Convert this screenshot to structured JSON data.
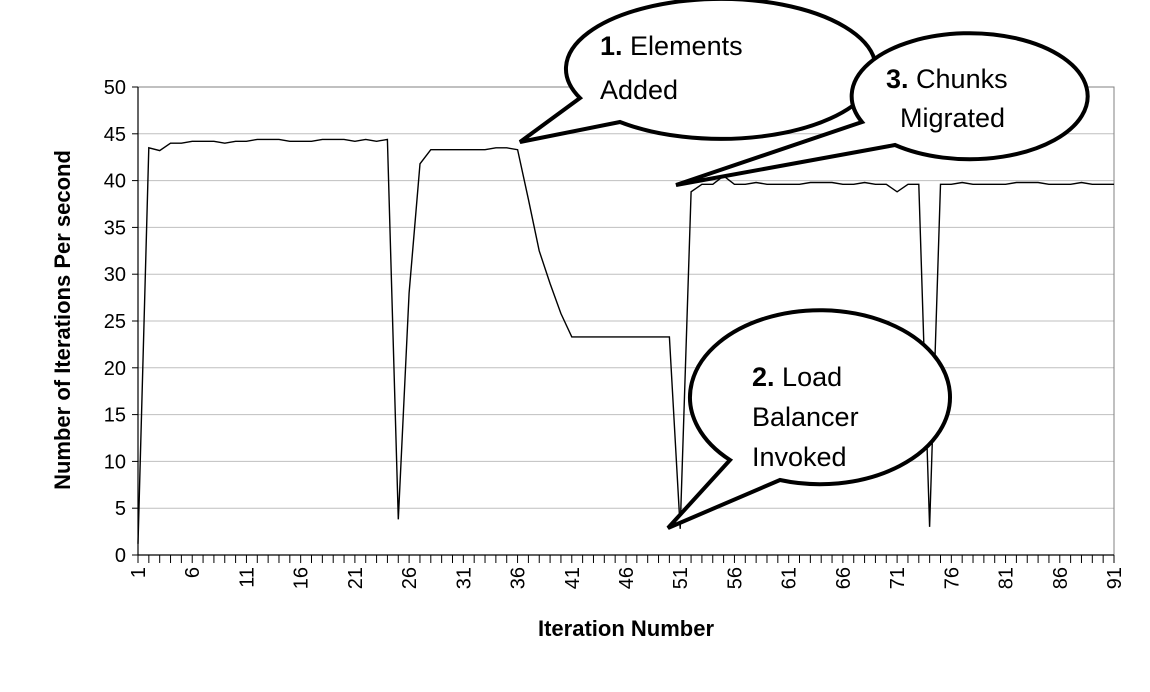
{
  "chart_data": {
    "type": "line",
    "title": "",
    "xlabel": "Iteration Number",
    "ylabel": "Number of Iterations Per second",
    "xlim": [
      1,
      91
    ],
    "ylim": [
      0,
      50
    ],
    "y_ticks": [
      0,
      5,
      10,
      15,
      20,
      25,
      30,
      35,
      40,
      45,
      50
    ],
    "x_tick_labels": [
      1,
      6,
      11,
      16,
      21,
      26,
      31,
      36,
      41,
      46,
      51,
      56,
      61,
      66,
      71,
      76,
      81,
      86,
      91
    ],
    "grid": "horizontal",
    "legend": "none",
    "series": [
      {
        "x": [
          1,
          2,
          3,
          4,
          5,
          6,
          7,
          8,
          9,
          10,
          11,
          12,
          13,
          14,
          15,
          16,
          17,
          18,
          19,
          20,
          21,
          22,
          23,
          24,
          25,
          26,
          27,
          28,
          29,
          30,
          31,
          32,
          33,
          34,
          35,
          36,
          37,
          38,
          39,
          40,
          41,
          42,
          43,
          44,
          45,
          46,
          47,
          48,
          49,
          50,
          51,
          52,
          53,
          54,
          55,
          56,
          57,
          58,
          59,
          60,
          61,
          62,
          63,
          64,
          65,
          66,
          67,
          68,
          69,
          70,
          71,
          72,
          73,
          74,
          75,
          76,
          77,
          78,
          79,
          80,
          81,
          82,
          83,
          84,
          85,
          86,
          87,
          88,
          89,
          90,
          91
        ],
        "values": [
          1.2,
          43.5,
          43.2,
          44,
          44,
          44.2,
          44.2,
          44.2,
          44,
          44.2,
          44.2,
          44.4,
          44.4,
          44.4,
          44.2,
          44.2,
          44.2,
          44.4,
          44.4,
          44.4,
          44.2,
          44.4,
          44.2,
          44.4,
          3.8,
          28,
          41.8,
          43.3,
          43.3,
          43.3,
          43.3,
          43.3,
          43.3,
          43.5,
          43.5,
          43.3,
          38,
          32.5,
          29,
          25.8,
          23.3,
          23.3,
          23.3,
          23.3,
          23.3,
          23.3,
          23.3,
          23.3,
          23.3,
          23.3,
          2.8,
          38.8,
          39.6,
          39.6,
          40.5,
          39.6,
          39.6,
          39.8,
          39.6,
          39.6,
          39.6,
          39.6,
          39.8,
          39.8,
          39.8,
          39.6,
          39.6,
          39.8,
          39.6,
          39.6,
          38.8,
          39.6,
          39.6,
          3,
          39.6,
          39.6,
          39.8,
          39.6,
          39.6,
          39.6,
          39.6,
          39.8,
          39.8,
          39.8,
          39.6,
          39.6,
          39.6,
          39.8,
          39.6,
          39.6,
          39.6
        ]
      }
    ],
    "line_color": "#000000",
    "grid_color": "#bfbfbf",
    "annotations": [
      {
        "number": "1.",
        "text": "Elements",
        "text2": "Added",
        "x": 36,
        "y": 43.4
      },
      {
        "number": "2.",
        "text": "Load",
        "text2": "Balancer",
        "text3": "Invoked",
        "x": 51,
        "y": 2.8
      },
      {
        "number": "3.",
        "text": "Chunks",
        "text2": "Migrated",
        "x": 52,
        "y": 39.5
      }
    ]
  }
}
